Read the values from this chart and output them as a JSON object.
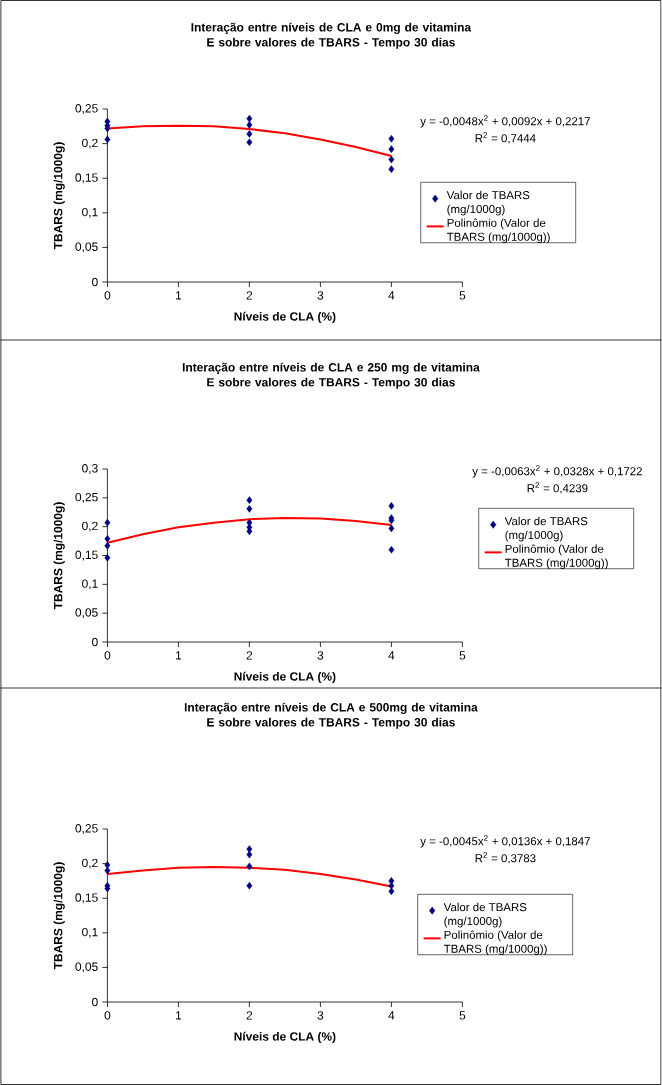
{
  "chart_data": [
    {
      "type": "scatter",
      "title": "Interação entre níveis de CLA e 0mg de vitamina E sobre valores de TBARS - Tempo 30 dias",
      "xlabel": "Níveis de CLA (%)",
      "ylabel": "TBARS (mg/1000g)",
      "annotations": [
        "y = -0,0048x$^{2}$ + 0,0092x + 0,2217",
        "R$^{2}$ = 0,7444"
      ],
      "xlim": [
        0,
        5
      ],
      "xticks": [
        0,
        1,
        2,
        3,
        4,
        5
      ],
      "ylim": [
        0,
        0.25
      ],
      "yticks": [
        0,
        {
          "value": 0.05,
          "label": "0,05"
        },
        {
          "value": 0.1,
          "label": "0,1"
        },
        {
          "value": 0.15,
          "label": "0,15"
        },
        {
          "value": 0.2,
          "label": "0,2"
        },
        {
          "value": 0.25,
          "label": "0,25"
        }
      ],
      "legend": "right",
      "series": [
        {
          "name": "Valor de TBARS (mg/1000g)",
          "marker": "diamond",
          "color": "#000080",
          "x": [
            0,
            0,
            0,
            0,
            2,
            2,
            2,
            2,
            4,
            4,
            4,
            4
          ],
          "values": [
            0.232,
            0.226,
            0.222,
            0.206,
            0.236,
            0.227,
            0.214,
            0.202,
            0.207,
            0.192,
            0.177,
            0.163
          ]
        },
        {
          "name": "Polinômio (Valor de TBARS (mg/1000g))",
          "type": "line",
          "color": "#ff0000",
          "x": [
            0,
            0.5,
            1,
            1.5,
            2,
            2.5,
            3,
            3.5,
            4
          ],
          "values": [
            0.222,
            0.225,
            0.226,
            0.225,
            0.221,
            0.215,
            0.206,
            0.195,
            0.182
          ]
        }
      ]
    },
    {
      "type": "scatter",
      "title": "Interação entre níveis de CLA e 250 mg de vitamina E sobre valores de TBARS - Tempo 30 dias",
      "xlabel": "Níveis de CLA (%)",
      "ylabel": "TBARS (mg/1000g)",
      "annotations": [
        "y = -0,0063x$^{2}$ + 0,0328x + 0,1722",
        "R$^{2}$ = 0,4239"
      ],
      "xlim": [
        0,
        5
      ],
      "xticks": [
        0,
        1,
        2,
        3,
        4,
        5
      ],
      "ylim": [
        0,
        0.3
      ],
      "yticks": [
        0,
        {
          "value": 0.05,
          "label": "0,05"
        },
        {
          "value": 0.1,
          "label": "0,1"
        },
        {
          "value": 0.15,
          "label": "0,15"
        },
        {
          "value": 0.2,
          "label": "0,2"
        },
        {
          "value": 0.25,
          "label": "0,25"
        },
        {
          "value": 0.3,
          "label": "0,3"
        }
      ],
      "legend": "right",
      "series": [
        {
          "name": "Valor de TBARS (mg/1000g)",
          "marker": "diamond",
          "color": "#000080",
          "x": [
            0,
            0,
            0,
            0,
            2,
            2,
            2,
            2,
            2,
            4,
            4,
            4,
            4,
            4
          ],
          "values": [
            0.207,
            0.179,
            0.167,
            0.146,
            0.246,
            0.231,
            0.207,
            0.199,
            0.192,
            0.236,
            0.215,
            0.211,
            0.197,
            0.16
          ]
        },
        {
          "name": "Polinômio (Valor de TBARS (mg/1000g))",
          "type": "line",
          "color": "#ff0000",
          "x": [
            0,
            0.5,
            1,
            1.5,
            2,
            2.5,
            3,
            3.5,
            4
          ],
          "values": [
            0.172,
            0.187,
            0.199,
            0.207,
            0.213,
            0.215,
            0.214,
            0.21,
            0.203
          ]
        }
      ]
    },
    {
      "type": "scatter",
      "title": "Interação entre níveis de CLA e 500mg de vitamina E sobre valores de TBARS - Tempo 30 dias",
      "xlabel": "Níveis de CLA (%)",
      "ylabel": "TBARS (mg/1000g)",
      "annotations": [
        "y = -0,0045x$^{2}$ + 0,0136x + 0,1847",
        "R$^{2}$ = 0,3783"
      ],
      "xlim": [
        0,
        5
      ],
      "xticks": [
        0,
        1,
        2,
        3,
        4,
        5
      ],
      "ylim": [
        0,
        0.25
      ],
      "yticks": [
        0,
        {
          "value": 0.05,
          "label": "0,05"
        },
        {
          "value": 0.1,
          "label": "0,1"
        },
        {
          "value": 0.15,
          "label": "0,15"
        },
        {
          "value": 0.2,
          "label": "0,2"
        },
        {
          "value": 0.25,
          "label": "0,25"
        }
      ],
      "legend": "right",
      "series": [
        {
          "name": "Valor de TBARS (mg/1000g)",
          "marker": "diamond",
          "color": "#000080",
          "x": [
            0,
            0,
            0,
            0,
            2,
            2,
            2,
            2,
            4,
            4,
            4
          ],
          "values": [
            0.198,
            0.19,
            0.168,
            0.164,
            0.221,
            0.213,
            0.196,
            0.168,
            0.175,
            0.168,
            0.16
          ]
        },
        {
          "name": "Polinômio (Valor de TBARS (mg/1000g))",
          "type": "line",
          "color": "#ff0000",
          "x": [
            0,
            0.5,
            1,
            1.5,
            2,
            2.5,
            3,
            3.5,
            4
          ],
          "values": [
            0.185,
            0.19,
            0.194,
            0.195,
            0.194,
            0.191,
            0.185,
            0.177,
            0.167
          ]
        }
      ]
    }
  ]
}
